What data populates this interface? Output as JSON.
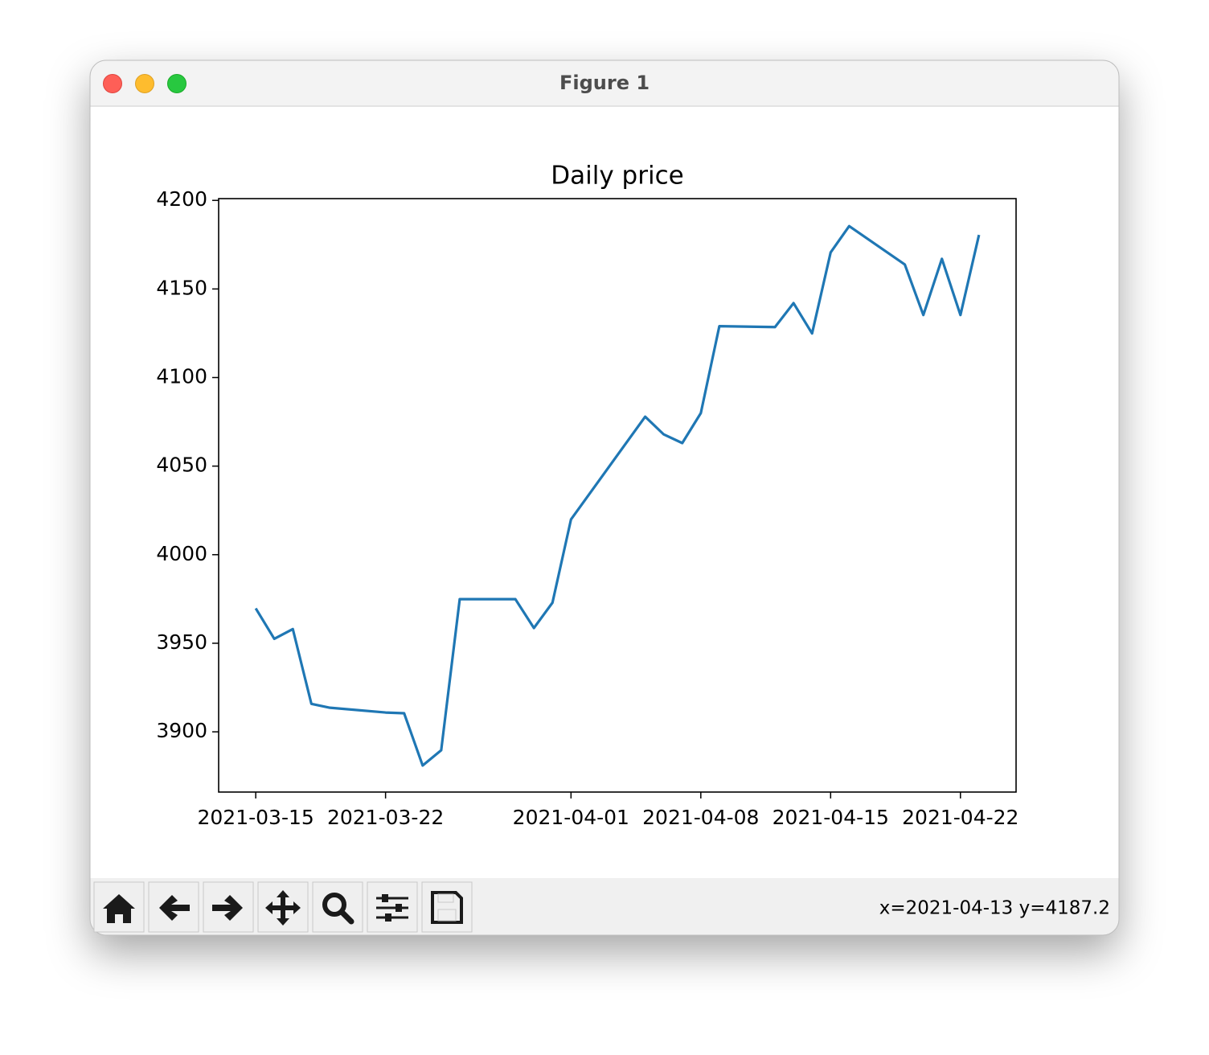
{
  "window": {
    "title": "Figure 1"
  },
  "chart_data": {
    "type": "line",
    "title": "Daily price",
    "x": [
      "2021-03-15",
      "2021-03-16",
      "2021-03-17",
      "2021-03-18",
      "2021-03-19",
      "2021-03-22",
      "2021-03-23",
      "2021-03-24",
      "2021-03-25",
      "2021-03-26",
      "2021-03-29",
      "2021-03-30",
      "2021-03-31",
      "2021-04-01",
      "2021-04-05",
      "2021-04-06",
      "2021-04-07",
      "2021-04-08",
      "2021-04-09",
      "2021-04-12",
      "2021-04-13",
      "2021-04-14",
      "2021-04-15",
      "2021-04-16",
      "2021-04-19",
      "2021-04-20",
      "2021-04-21",
      "2021-04-22",
      "2021-04-23"
    ],
    "values": [
      3969.7,
      3952.5,
      3958,
      3915.8,
      3913.6,
      3910.9,
      3910.5,
      3881,
      3889.6,
      3974.9,
      3974.9,
      3958.6,
      3972.9,
      4019.9,
      4077.9,
      4067.9,
      4063,
      4079.9,
      4129,
      4128.5,
      4142,
      4124.9,
      4170.6,
      4185.5,
      4163.8,
      4135.3,
      4167,
      4135.3,
      4180.5
    ],
    "color": "#1f77b4",
    "xlim": [
      "2021-03-13",
      "2021-04-25"
    ],
    "xticks": [
      "2021-03-15",
      "2021-03-22",
      "2021-04-01",
      "2021-04-08",
      "2021-04-15",
      "2021-04-22"
    ],
    "ylim": [
      3866,
      4201
    ],
    "yticks": [
      3900,
      3950,
      4000,
      4050,
      4100,
      4150,
      4200
    ]
  },
  "toolbar": {
    "status": "x=2021-04-13 y=4187.2"
  }
}
